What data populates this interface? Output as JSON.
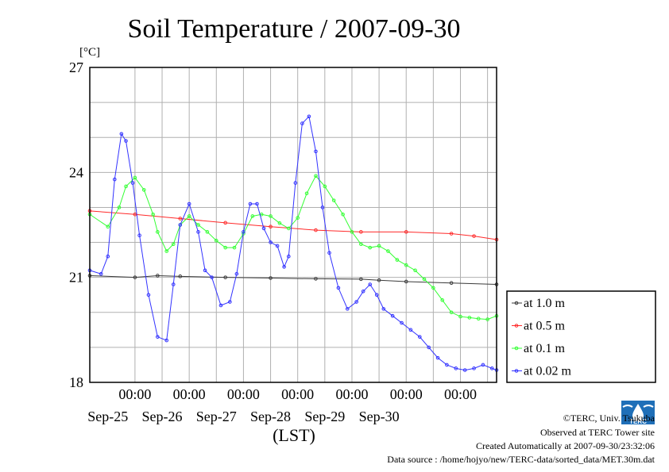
{
  "chart_data": {
    "type": "line",
    "title": "Soil Temperature / 2007-09-30",
    "y_unit": "[°C]",
    "xlabel": "(LST)",
    "ylim": [
      18,
      27
    ],
    "yticks": [
      18,
      21,
      24,
      27
    ],
    "x_range_hours": [
      -20,
      160
    ],
    "time_tick_label": "00:00",
    "date_labels": [
      "Sep-25",
      "Sep-26",
      "Sep-27",
      "Sep-28",
      "Sep-29",
      "Sep-30"
    ],
    "grid": true,
    "legend_position": "right",
    "series": [
      {
        "name": "at 1.0 m",
        "color": "#3a3a3a",
        "x": [
          -20,
          0,
          10,
          20,
          40,
          60,
          80,
          100,
          108,
          120,
          140,
          160
        ],
        "y": [
          21.05,
          21.0,
          21.05,
          21.03,
          21.0,
          20.98,
          20.96,
          20.95,
          20.92,
          20.88,
          20.84,
          20.8
        ]
      },
      {
        "name": "at 0.5 m",
        "color": "#ff2a2a",
        "x": [
          -20,
          0,
          20,
          40,
          60,
          80,
          100,
          120,
          140,
          150,
          160
        ],
        "y": [
          22.9,
          22.8,
          22.68,
          22.56,
          22.45,
          22.35,
          22.3,
          22.3,
          22.25,
          22.18,
          22.08
        ]
      },
      {
        "name": "at 0.1 m",
        "color": "#33ff33",
        "x": [
          -20,
          -12,
          -7,
          -4,
          0,
          4,
          8,
          10,
          14,
          17,
          20,
          24,
          28,
          32,
          36,
          40,
          44,
          48,
          52,
          56,
          60,
          64,
          68,
          72,
          76,
          80,
          84,
          88,
          92,
          96,
          100,
          104,
          108,
          112,
          116,
          120,
          124,
          128,
          132,
          136,
          140,
          144,
          148,
          152,
          156,
          160
        ],
        "y": [
          22.8,
          22.45,
          23.0,
          23.6,
          23.85,
          23.5,
          22.8,
          22.3,
          21.75,
          21.95,
          22.5,
          22.75,
          22.5,
          22.3,
          22.05,
          21.85,
          21.85,
          22.25,
          22.75,
          22.8,
          22.75,
          22.55,
          22.4,
          22.7,
          23.4,
          23.9,
          23.6,
          23.2,
          22.8,
          22.3,
          21.95,
          21.85,
          21.9,
          21.75,
          21.5,
          21.35,
          21.2,
          20.95,
          20.7,
          20.35,
          20.0,
          19.88,
          19.85,
          19.82,
          19.8,
          19.9
        ]
      },
      {
        "name": "at 0.02 m",
        "color": "#3333ff",
        "x": [
          -20,
          -15,
          -12,
          -9,
          -6,
          -4,
          -1,
          2,
          6,
          10,
          14,
          17,
          20,
          24,
          28,
          31,
          34,
          38,
          42,
          45,
          48,
          51,
          54,
          57,
          60,
          63,
          66,
          68,
          71,
          74,
          77,
          80,
          83,
          86,
          90,
          94,
          98,
          101,
          104,
          107,
          110,
          114,
          118,
          122,
          126,
          130,
          134,
          138,
          142,
          146,
          150,
          154,
          158,
          160
        ],
        "y": [
          21.2,
          21.1,
          21.6,
          23.8,
          25.1,
          24.9,
          23.7,
          22.2,
          20.5,
          19.3,
          19.2,
          20.8,
          22.5,
          23.1,
          22.3,
          21.2,
          21.0,
          20.2,
          20.3,
          21.1,
          22.3,
          23.1,
          23.1,
          22.4,
          22.0,
          21.9,
          21.3,
          21.6,
          23.7,
          25.4,
          25.6,
          24.6,
          23.0,
          21.7,
          20.7,
          20.1,
          20.3,
          20.6,
          20.8,
          20.5,
          20.1,
          19.9,
          19.7,
          19.5,
          19.3,
          19.0,
          18.7,
          18.5,
          18.4,
          18.35,
          18.4,
          18.5,
          18.4,
          18.35
        ]
      }
    ]
  },
  "footer": {
    "copyright": "©TERC, Univ. Tsukuba",
    "observed": "Observed at TERC Tower site",
    "created": "Created Automatically at 2007-09-30/23:32:06",
    "source": "Data source : /home/hojyo/new/TERC-data/sorted_data/MET.30m.dat"
  },
  "logo": {
    "text": "TERC",
    "color": "#1f6fb8"
  }
}
